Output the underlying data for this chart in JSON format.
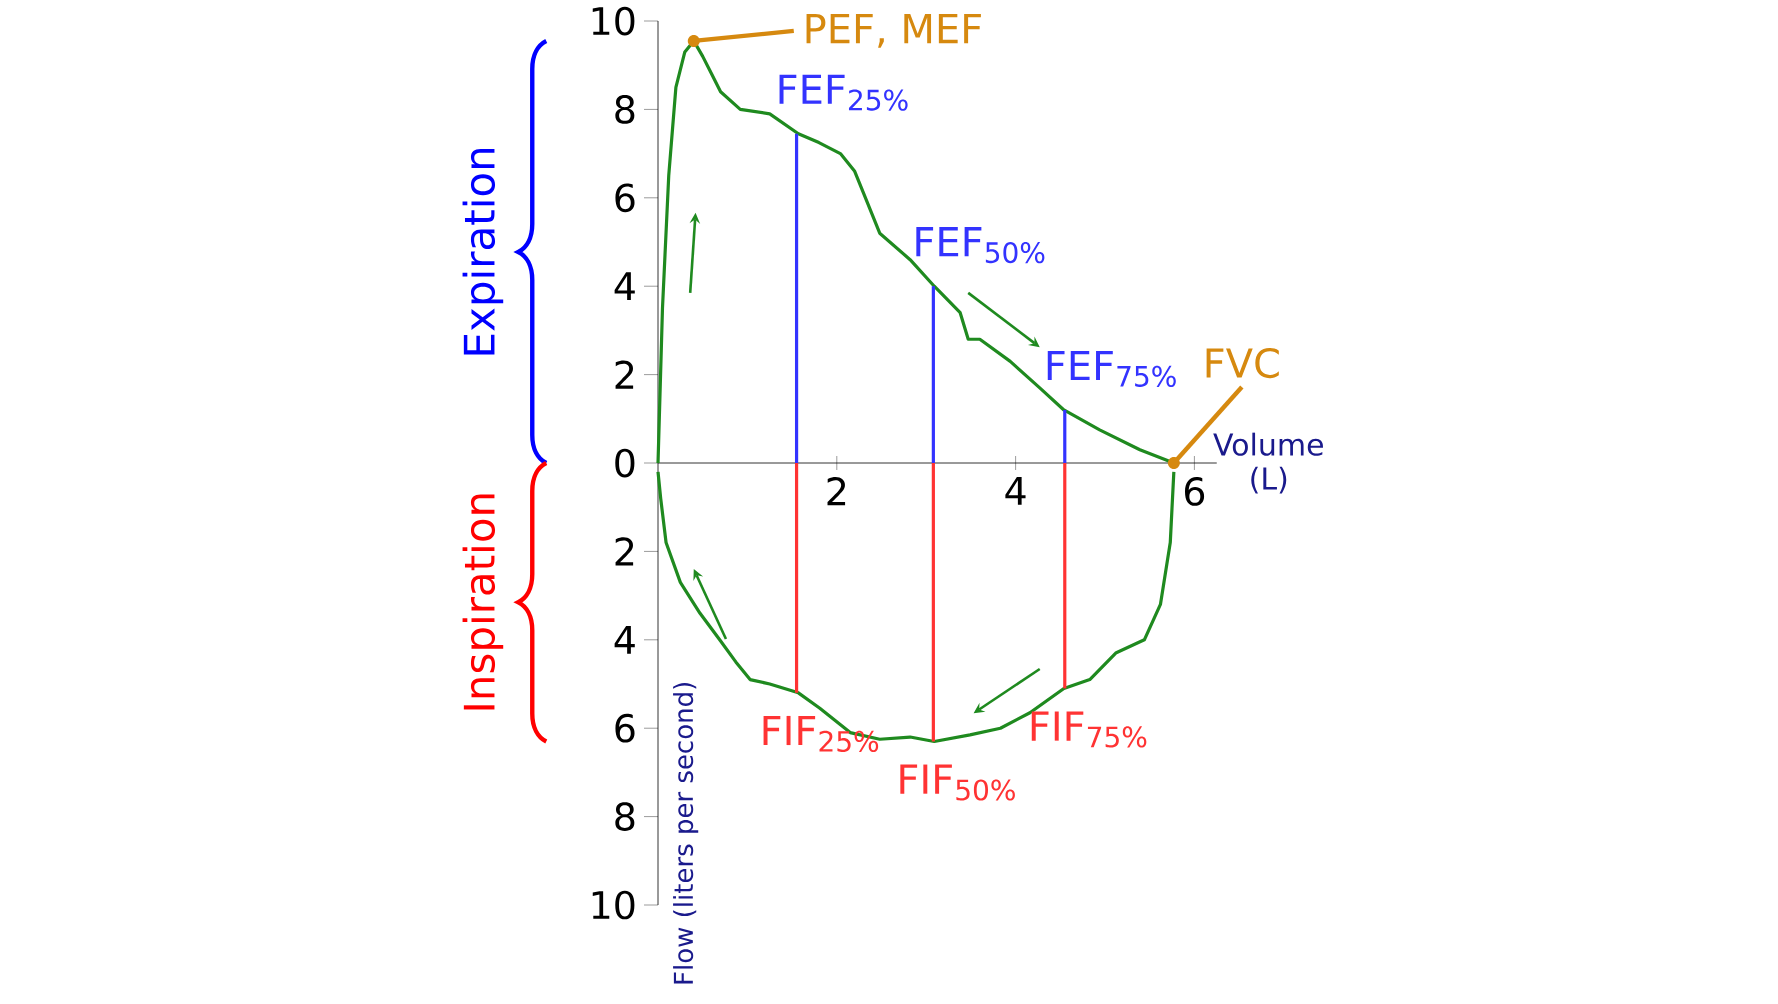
{
  "chart_data": {
    "type": "line",
    "xlabel": "Volume (L)",
    "ylabel": "Flow (liters per second)",
    "xlim": [
      0,
      6.25
    ],
    "ylim": [
      -10,
      10
    ],
    "xticks": [
      2,
      4,
      6
    ],
    "yticks": [
      {
        "value": -10,
        "label": "10"
      },
      {
        "value": -8,
        "label": "8"
      },
      {
        "value": -6,
        "label": "6"
      },
      {
        "value": -4,
        "label": "4"
      },
      {
        "value": -2,
        "label": "2"
      },
      0,
      2,
      4,
      6,
      8,
      10
    ],
    "series": [
      {
        "color": "#1f8a1f",
        "x": [
          0,
          0.05,
          0.12,
          0.2,
          0.3,
          0.4,
          0.5,
          0.6,
          0.7,
          0.92,
          1.25,
          1.57,
          1.8,
          2.04,
          2.2,
          2.3,
          2.48,
          2.82,
          3.09,
          3.38,
          3.47,
          3.6,
          3.94,
          4.27,
          4.54,
          4.94,
          5.39,
          5.77
        ],
        "values": [
          0,
          3.5,
          6.5,
          8.5,
          9.3,
          9.55,
          9.2,
          8.8,
          8.4,
          8.0,
          7.9,
          7.45,
          7.25,
          7.0,
          6.6,
          6.1,
          5.2,
          4.6,
          4.0,
          3.4,
          2.8,
          2.8,
          2.3,
          1.7,
          1.2,
          0.75,
          0.3,
          0
        ]
      },
      {
        "color": "#1f8a1f",
        "x": [
          0,
          0.03,
          0.09,
          0.25,
          0.47,
          0.69,
          0.87,
          1.03,
          1.25,
          1.57,
          1.81,
          2.15,
          2.48,
          2.82,
          3.09,
          3.49,
          3.83,
          4.16,
          4.54,
          4.83,
          5.12,
          5.44,
          5.62,
          5.73,
          5.77
        ],
        "values": [
          -0.2,
          -0.8,
          -1.8,
          -2.7,
          -3.4,
          -4.0,
          -4.5,
          -4.9,
          -5.0,
          -5.2,
          -5.55,
          -6.1,
          -6.25,
          -6.2,
          -6.3,
          -6.15,
          -6.0,
          -5.65,
          -5.1,
          -4.9,
          -4.3,
          -4.0,
          -3.2,
          -1.8,
          -0.2
        ]
      },
      {
        "color": "#3333ff",
        "x": [
          1.55,
          1.55
        ],
        "values": [
          0,
          7.45
        ]
      },
      {
        "color": "#3333ff",
        "x": [
          3.08,
          3.08
        ],
        "values": [
          0,
          4.0
        ]
      },
      {
        "color": "#3333ff",
        "x": [
          4.55,
          4.55
        ],
        "values": [
          0,
          1.2
        ]
      },
      {
        "color": "#ff3333",
        "x": [
          1.55,
          1.55
        ],
        "values": [
          0,
          -5.2
        ]
      },
      {
        "color": "#ff3333",
        "x": [
          3.08,
          3.08
        ],
        "values": [
          0,
          -6.3
        ]
      },
      {
        "color": "#ff3333",
        "x": [
          4.55,
          4.55
        ],
        "values": [
          0,
          -5.1
        ]
      }
    ],
    "annotations": [
      {
        "text": "FEF$_{25%}$",
        "x": 1.55,
        "y": 7.45
      },
      {
        "text": "FEF$_{50%}$",
        "x": 3.08,
        "y": 4.0
      },
      {
        "text": "FEF$_{75%}$",
        "x": 4.55,
        "y": 1.2
      },
      {
        "text": "FIF$_{25%}$",
        "x": 1.55,
        "y": -5.2
      },
      {
        "text": "FIF$_{50%}$",
        "x": 3.08,
        "y": -6.3
      },
      {
        "text": "FIF$_{75%}$",
        "x": 4.55,
        "y": -5.1
      },
      {
        "text": "PEF, MEF",
        "x": 0.4,
        "y": 9.55
      },
      {
        "text": "FVC",
        "x": 5.77,
        "y": 0
      },
      "Expiration",
      "Inspiration"
    ],
    "grid": false
  }
}
